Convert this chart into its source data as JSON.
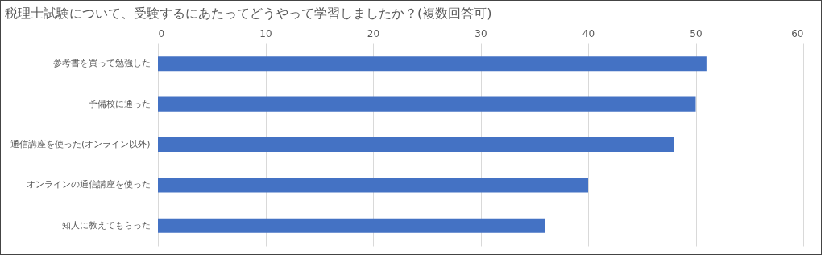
{
  "chart_data": {
    "type": "bar",
    "orientation": "horizontal",
    "title": "税理士試験について、受験するにあたってどうやって学習しましたか？(複数回答可)",
    "categories": [
      "参考書を買って勉強した",
      "予備校に通った",
      "通信講座を使った(オンライン以外)",
      "オンラインの通信講座を使った",
      "知人に教えてもらった"
    ],
    "values": [
      51,
      50,
      48,
      40,
      36
    ],
    "color": "#4472c4",
    "xlim": [
      0,
      60
    ],
    "xticks": [
      0,
      10,
      20,
      30,
      40,
      50,
      60
    ],
    "grid": true
  }
}
